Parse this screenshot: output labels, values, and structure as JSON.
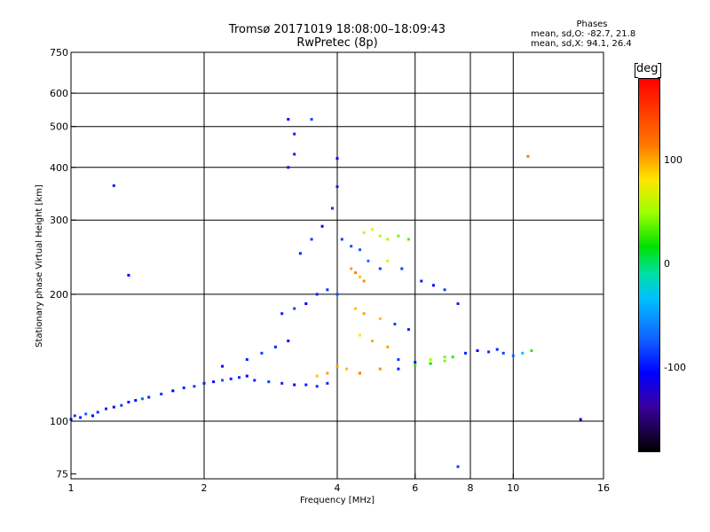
{
  "chart_data": {
    "type": "scatter",
    "title": "Tromsø 20171019 18:08:00–18:09:43",
    "subtitle": "RwPretec (8p)",
    "xlabel": "Frequency [MHz]",
    "ylabel": "Stationary phase Virtual Height [km]",
    "x_scale": "log",
    "y_scale": "log",
    "xlim": [
      1,
      16
    ],
    "ylim": [
      73,
      750
    ],
    "x_ticks": [
      1,
      2,
      4,
      6,
      8,
      10,
      16
    ],
    "x_tick_labels": [
      "1",
      "2",
      "4",
      "6",
      "8",
      "10",
      "16"
    ],
    "x_gridlines": [
      2,
      4,
      6,
      8,
      10
    ],
    "y_ticks": [
      75,
      100,
      200,
      300,
      400,
      500,
      600,
      750
    ],
    "y_tick_labels": [
      "75",
      "100",
      "200",
      "300",
      "400",
      "500",
      "600",
      "750"
    ],
    "y_gridlines": [
      100,
      200,
      300,
      400,
      500,
      600
    ],
    "grid": true,
    "phase_stats": {
      "heading": "Phases",
      "line_o": "mean, sd,O: -82.7, 21.8",
      "line_x": "mean, sd,X:  94.1, 26.4"
    },
    "colorbar": {
      "unit": "deg",
      "ticks": [
        100,
        0,
        -100
      ],
      "tick_labels": [
        "100",
        "0",
        "-100"
      ],
      "range": [
        -180,
        180
      ],
      "colormap": "rainbow (black-purple-blue-cyan-green-yellow-orange-red)"
    },
    "points_note_1": "sampled representative echo points: [frequency MHz, virtual height km, phase deg]",
    "series": [
      {
        "name": "",
        "points": [
          [
            1.0,
            101,
            -110
          ],
          [
            1.02,
            103,
            -90
          ],
          [
            1.05,
            102,
            -100
          ],
          [
            1.08,
            104,
            -80
          ],
          [
            1.12,
            103,
            -110
          ],
          [
            1.15,
            105,
            -95
          ],
          [
            1.2,
            107,
            -100
          ],
          [
            1.25,
            108,
            -120
          ],
          [
            1.3,
            109,
            -90
          ],
          [
            1.35,
            111,
            -100
          ],
          [
            1.4,
            112,
            -110
          ],
          [
            1.45,
            113,
            -80
          ],
          [
            1.5,
            114,
            -100
          ],
          [
            1.6,
            116,
            -95
          ],
          [
            1.7,
            118,
            -110
          ],
          [
            1.8,
            120,
            -100
          ],
          [
            1.9,
            121,
            -90
          ],
          [
            2.0,
            123,
            -100
          ],
          [
            2.1,
            124,
            -110
          ],
          [
            2.2,
            125,
            -85
          ],
          [
            2.3,
            126,
            -100
          ],
          [
            2.4,
            127,
            -95
          ],
          [
            2.5,
            128,
            -110
          ],
          [
            2.6,
            125,
            -100
          ],
          [
            2.8,
            124,
            -90
          ],
          [
            3.0,
            123,
            -100
          ],
          [
            3.2,
            122,
            -110
          ],
          [
            3.4,
            122,
            -100
          ],
          [
            3.6,
            121,
            -95
          ],
          [
            3.8,
            123,
            -100
          ],
          [
            2.2,
            135,
            -110
          ],
          [
            2.5,
            140,
            -100
          ],
          [
            2.7,
            145,
            -90
          ],
          [
            2.9,
            150,
            -100
          ],
          [
            3.1,
            155,
            -110
          ],
          [
            3.0,
            180,
            -100
          ],
          [
            3.2,
            185,
            -90
          ],
          [
            3.4,
            190,
            -110
          ],
          [
            3.6,
            200,
            -100
          ],
          [
            3.8,
            205,
            -95
          ],
          [
            4.0,
            200,
            -85
          ],
          [
            3.3,
            250,
            -100
          ],
          [
            3.5,
            270,
            -90
          ],
          [
            3.7,
            290,
            -110
          ],
          [
            3.9,
            320,
            -95
          ],
          [
            4.0,
            360,
            -100
          ],
          [
            4.0,
            420,
            -110
          ],
          [
            3.1,
            400,
            -120
          ],
          [
            3.2,
            430,
            -100
          ],
          [
            3.1,
            520,
            -110
          ],
          [
            3.5,
            520,
            -90
          ],
          [
            3.2,
            480,
            -100
          ],
          [
            4.1,
            270,
            -90
          ],
          [
            4.3,
            260,
            -85
          ],
          [
            4.5,
            255,
            -80
          ],
          [
            4.7,
            240,
            -70
          ],
          [
            5.0,
            230,
            -90
          ],
          [
            4.3,
            230,
            120
          ],
          [
            4.4,
            225,
            130
          ],
          [
            4.5,
            220,
            110
          ],
          [
            4.6,
            215,
            125
          ],
          [
            4.6,
            280,
            90
          ],
          [
            4.8,
            285,
            100
          ],
          [
            5.0,
            275,
            80
          ],
          [
            5.2,
            270,
            70
          ],
          [
            5.5,
            275,
            60
          ],
          [
            5.8,
            270,
            50
          ],
          [
            5.2,
            240,
            90
          ],
          [
            5.6,
            230,
            -90
          ],
          [
            6.2,
            215,
            -100
          ],
          [
            6.6,
            210,
            -110
          ],
          [
            7.0,
            205,
            -90
          ],
          [
            7.5,
            190,
            -100
          ],
          [
            4.4,
            185,
            110
          ],
          [
            4.6,
            180,
            120
          ],
          [
            5.0,
            175,
            110
          ],
          [
            5.4,
            170,
            -90
          ],
          [
            5.8,
            165,
            -100
          ],
          [
            4.5,
            160,
            100
          ],
          [
            4.8,
            155,
            115
          ],
          [
            5.2,
            150,
            120
          ],
          [
            5.5,
            140,
            -90
          ],
          [
            6.0,
            138,
            -100
          ],
          [
            6.5,
            140,
            70
          ],
          [
            7.0,
            142,
            60
          ],
          [
            7.3,
            142,
            40
          ],
          [
            7.8,
            145,
            -100
          ],
          [
            8.3,
            147,
            -110
          ],
          [
            8.8,
            146,
            -95
          ],
          [
            9.2,
            148,
            -100
          ],
          [
            9.5,
            145,
            -90
          ],
          [
            10.0,
            143,
            -80
          ],
          [
            10.5,
            145,
            -30
          ],
          [
            11.0,
            147,
            40
          ],
          [
            4.0,
            135,
            120
          ],
          [
            4.2,
            133,
            110
          ],
          [
            4.5,
            130,
            130
          ],
          [
            5.0,
            133,
            125
          ],
          [
            5.5,
            133,
            -100
          ],
          [
            6.0,
            136,
            40
          ],
          [
            6.5,
            137,
            30
          ],
          [
            7.0,
            139,
            60
          ],
          [
            3.6,
            128,
            110
          ],
          [
            3.8,
            130,
            120
          ],
          [
            1.35,
            222,
            -110
          ],
          [
            1.25,
            362,
            -100
          ],
          [
            10.8,
            425,
            130
          ],
          [
            14.2,
            101,
            -120
          ],
          [
            7.5,
            78,
            -90
          ]
        ]
      }
    ]
  }
}
